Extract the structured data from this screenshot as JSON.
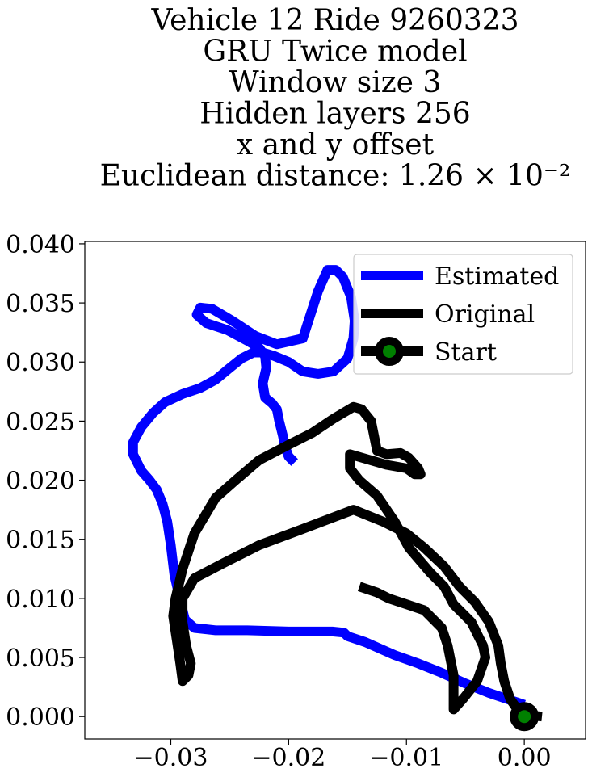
{
  "chart_data": {
    "type": "line",
    "title_lines": [
      "Vehicle 12 Ride 9260323",
      "GRU Twice model",
      "Window size 3",
      "Hidden layers 256",
      "x and y offset",
      "Euclidean distance: 1.26 × 10⁻²"
    ],
    "xlabel": "",
    "ylabel": "",
    "xlim": [
      -0.0373,
      0.0052
    ],
    "ylim": [
      -0.0019,
      0.0402
    ],
    "x_ticks": [
      -0.03,
      -0.02,
      -0.01,
      0.0
    ],
    "x_tick_labels": [
      "−0.03",
      "−0.02",
      "−0.01",
      "0.00"
    ],
    "y_ticks": [
      0.0,
      0.005,
      0.01,
      0.015,
      0.02,
      0.025,
      0.03,
      0.035,
      0.04
    ],
    "y_tick_labels": [
      "0.000",
      "0.005",
      "0.010",
      "0.015",
      "0.020",
      "0.025",
      "0.030",
      "0.035",
      "0.040"
    ],
    "grid": false,
    "legend_position": "top-right",
    "series": [
      {
        "name": "Estimated",
        "color": "#0000ff",
        "x": [
          0.0,
          -0.0015,
          -0.003,
          -0.005,
          -0.007,
          -0.009,
          -0.011,
          -0.0135,
          -0.015,
          -0.0153,
          -0.0163,
          -0.02,
          -0.0235,
          -0.0262,
          -0.028,
          -0.0288,
          -0.0292,
          -0.0297,
          -0.03,
          -0.0303,
          -0.0307,
          -0.0312,
          -0.0318,
          -0.0325,
          -0.0332,
          -0.0332,
          -0.0325,
          -0.0315,
          -0.0305,
          -0.029,
          -0.0275,
          -0.0262,
          -0.025,
          -0.024,
          -0.023,
          -0.0222,
          -0.0212,
          -0.02,
          -0.0188,
          -0.0175,
          -0.0162,
          -0.015,
          -0.0145,
          -0.0144,
          -0.0147,
          -0.0154,
          -0.016,
          -0.0167,
          -0.0175,
          -0.0188,
          -0.021,
          -0.0228,
          -0.0248,
          -0.0265,
          -0.0275,
          -0.0278,
          -0.027,
          -0.0252,
          -0.0235,
          -0.0225,
          -0.022,
          -0.0219,
          -0.0222,
          -0.022,
          -0.0214,
          -0.021,
          -0.0208,
          -0.0205,
          -0.0203,
          -0.02,
          -0.0195
        ],
        "y": [
          0.001,
          0.0015,
          0.002,
          0.0028,
          0.0037,
          0.0045,
          0.0052,
          0.0063,
          0.0068,
          0.0071,
          0.0072,
          0.0072,
          0.0073,
          0.0073,
          0.0075,
          0.0082,
          0.0098,
          0.012,
          0.0145,
          0.0165,
          0.018,
          0.0192,
          0.02,
          0.0208,
          0.0222,
          0.0232,
          0.0245,
          0.0257,
          0.0266,
          0.0273,
          0.0278,
          0.0285,
          0.0295,
          0.0303,
          0.0308,
          0.0308,
          0.0305,
          0.03,
          0.0292,
          0.029,
          0.0292,
          0.0303,
          0.032,
          0.0335,
          0.0355,
          0.0372,
          0.0378,
          0.0378,
          0.036,
          0.032,
          0.0315,
          0.0322,
          0.0335,
          0.0345,
          0.0346,
          0.034,
          0.0333,
          0.0327,
          0.0318,
          0.0312,
          0.0305,
          0.0295,
          0.0282,
          0.027,
          0.0265,
          0.026,
          0.025,
          0.0238,
          0.0228,
          0.022,
          0.0215
        ]
      },
      {
        "name": "Original",
        "color": "#000000",
        "x": [
          0.0015,
          0.0005,
          -0.0005,
          -0.0012,
          -0.0017,
          -0.002,
          -0.0022,
          -0.003,
          -0.0042,
          -0.0055,
          -0.0068,
          -0.0085,
          -0.01,
          -0.012,
          -0.0145,
          -0.019,
          -0.0225,
          -0.0255,
          -0.028,
          -0.029,
          -0.029,
          -0.0287,
          -0.0283,
          -0.0285,
          -0.029,
          -0.0292,
          -0.0295,
          -0.0298,
          -0.0296,
          -0.029,
          -0.028,
          -0.0262,
          -0.0245,
          -0.0225,
          -0.02,
          -0.018,
          -0.0162,
          -0.0145,
          -0.0138,
          -0.013,
          -0.0127,
          -0.0125,
          -0.0117,
          -0.0105,
          -0.0098,
          -0.009,
          -0.0088,
          -0.0093,
          -0.01,
          -0.0117,
          -0.0148,
          -0.0148,
          -0.014,
          -0.0125,
          -0.011,
          -0.0098,
          -0.008,
          -0.0068,
          -0.006,
          -0.0045,
          -0.004,
          -0.0035,
          -0.0033,
          -0.004,
          -0.0052,
          -0.006,
          -0.006,
          -0.0065,
          -0.007,
          -0.0075,
          -0.0085,
          -0.01,
          -0.0115,
          -0.0125,
          -0.014
        ],
        "y": [
          0.0,
          0.0001,
          0.0005,
          0.0015,
          0.003,
          0.0045,
          0.006,
          0.008,
          0.0097,
          0.011,
          0.0127,
          0.0143,
          0.0155,
          0.0165,
          0.0175,
          0.0158,
          0.0145,
          0.013,
          0.0117,
          0.01,
          0.008,
          0.006,
          0.0045,
          0.0035,
          0.003,
          0.0045,
          0.0065,
          0.0085,
          0.01,
          0.0125,
          0.0155,
          0.0185,
          0.02,
          0.0217,
          0.023,
          0.024,
          0.0252,
          0.0262,
          0.026,
          0.025,
          0.0235,
          0.0225,
          0.0222,
          0.0223,
          0.0219,
          0.021,
          0.0205,
          0.0205,
          0.021,
          0.0213,
          0.0222,
          0.021,
          0.02,
          0.0187,
          0.0165,
          0.0143,
          0.0122,
          0.011,
          0.0095,
          0.008,
          0.007,
          0.006,
          0.005,
          0.003,
          0.0015,
          0.0006,
          0.0035,
          0.006,
          0.0075,
          0.008,
          0.009,
          0.0095,
          0.01,
          0.0105,
          0.011
        ]
      }
    ],
    "start_marker": {
      "name": "Start",
      "x": 0.0,
      "y": 0.0,
      "edge_color": "#000000",
      "face_color": "#008000"
    },
    "legend_entries": [
      {
        "label": "Estimated",
        "color": "#0000ff",
        "kind": "line"
      },
      {
        "label": "Original",
        "color": "#000000",
        "kind": "line"
      },
      {
        "label": "Start",
        "color": "#000000",
        "marker_face": "#008000",
        "kind": "line-marker"
      }
    ]
  }
}
